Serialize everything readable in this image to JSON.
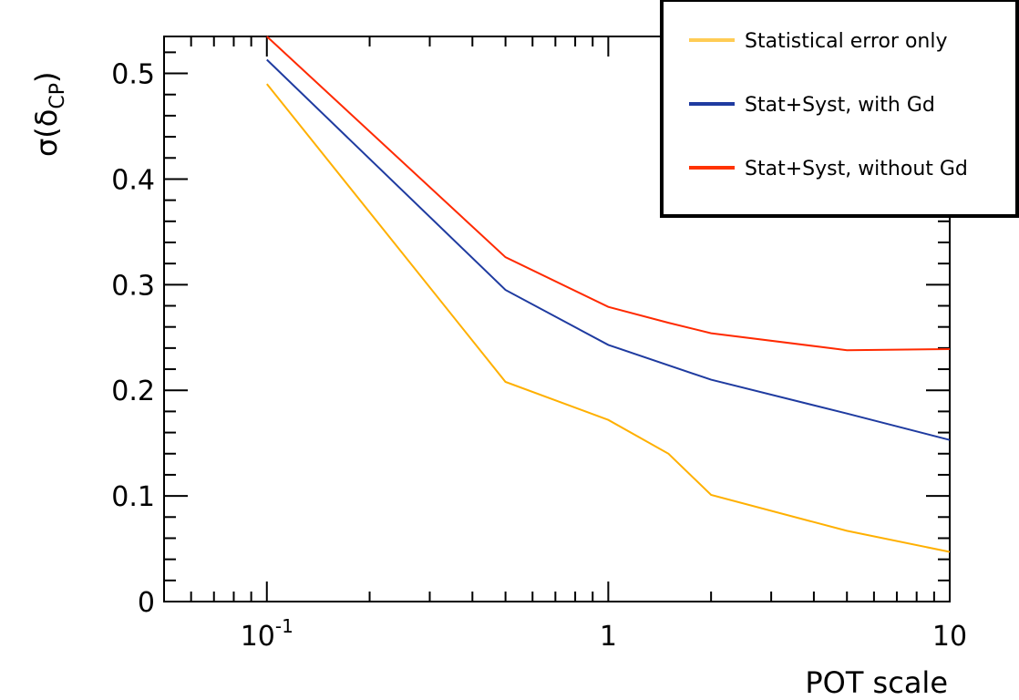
{
  "chart_data": {
    "type": "line",
    "xscale": "log",
    "xlim": [
      0.05,
      10
    ],
    "ylim": [
      0,
      0.535
    ],
    "xlabel": "POT scale",
    "ylabel": {
      "base": "σ(δ",
      "subscript": "CP",
      "close": ")"
    },
    "x_ticks": [
      {
        "value": 0.1,
        "base": "10",
        "exp": "-1"
      },
      {
        "value": 1,
        "base": "1",
        "exp": ""
      },
      {
        "value": 10,
        "base": "10",
        "exp": ""
      }
    ],
    "y_ticks": [
      {
        "value": 0,
        "label": "0"
      },
      {
        "value": 0.1,
        "label": "0.1"
      },
      {
        "value": 0.2,
        "label": "0.2"
      },
      {
        "value": 0.3,
        "label": "0.3"
      },
      {
        "value": 0.4,
        "label": "0.4"
      },
      {
        "value": 0.5,
        "label": "0.5"
      }
    ],
    "series": [
      {
        "name": "Statistical error only",
        "color": "#ffb000",
        "legend_color": "#ffcc55",
        "x": [
          0.1,
          0.5,
          1,
          1.5,
          2,
          5,
          10
        ],
        "y": [
          0.49,
          0.208,
          0.172,
          0.14,
          0.101,
          0.067,
          0.047
        ]
      },
      {
        "name": "Stat+Syst, with Gd",
        "color": "#1f3ba0",
        "legend_color": "#1f3ba0",
        "x": [
          0.1,
          0.5,
          1,
          2,
          5,
          10
        ],
        "y": [
          0.513,
          0.295,
          0.243,
          0.21,
          0.178,
          0.153
        ]
      },
      {
        "name": "Stat+Syst, without Gd",
        "color": "#ff2a00",
        "legend_color": "#ff3300",
        "x": [
          0.1,
          0.5,
          1,
          1.5,
          2,
          5,
          10
        ],
        "y": [
          0.535,
          0.326,
          0.279,
          0.264,
          0.254,
          0.238,
          0.239
        ]
      }
    ],
    "legend_position": "top-right"
  }
}
